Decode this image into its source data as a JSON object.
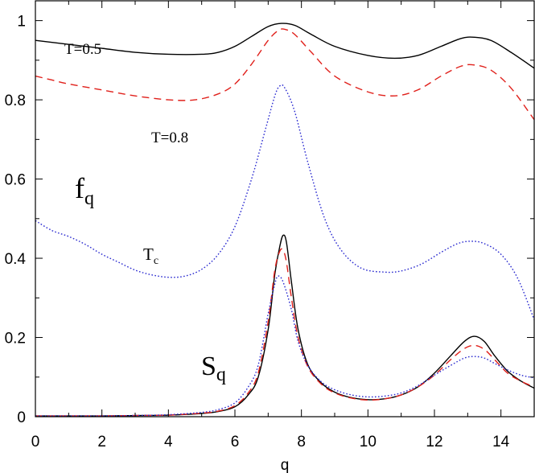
{
  "chart_data": {
    "type": "line",
    "xlabel": "q",
    "ylabel": "",
    "xlim": [
      0,
      15
    ],
    "ylim": [
      0,
      1.05
    ],
    "grid": false,
    "xticks": [
      "0",
      "2",
      "4",
      "6",
      "8",
      "10",
      "12",
      "14"
    ],
    "yticks": [
      "0",
      "0.2",
      "0.4",
      "0.6",
      "0.8",
      "1"
    ],
    "annotations": {
      "t05": "T=0.5",
      "t08": "T=0.8",
      "tc_main": "T",
      "tc_sub": "c",
      "fq_main": "f",
      "fq_sub": "q",
      "sq_main": "S",
      "sq_sub": "q"
    },
    "series": [
      {
        "id": "fq_T05",
        "style": "solid",
        "color": "#000000",
        "points": [
          [
            0,
            0.95
          ],
          [
            1,
            0.94
          ],
          [
            2,
            0.93
          ],
          [
            3,
            0.92
          ],
          [
            4,
            0.915
          ],
          [
            5,
            0.915
          ],
          [
            5.5,
            0.92
          ],
          [
            6,
            0.935
          ],
          [
            6.5,
            0.96
          ],
          [
            7,
            0.985
          ],
          [
            7.4,
            0.993
          ],
          [
            7.8,
            0.988
          ],
          [
            8.3,
            0.965
          ],
          [
            9,
            0.935
          ],
          [
            10,
            0.912
          ],
          [
            10.8,
            0.905
          ],
          [
            11.5,
            0.912
          ],
          [
            12.2,
            0.935
          ],
          [
            12.8,
            0.955
          ],
          [
            13.2,
            0.958
          ],
          [
            13.7,
            0.95
          ],
          [
            14.3,
            0.92
          ],
          [
            15,
            0.88
          ]
        ]
      },
      {
        "id": "fq_T08",
        "style": "dashed",
        "color": "#e0201b",
        "points": [
          [
            0,
            0.86
          ],
          [
            0.5,
            0.85
          ],
          [
            1,
            0.84
          ],
          [
            2,
            0.825
          ],
          [
            3,
            0.81
          ],
          [
            4,
            0.8
          ],
          [
            4.8,
            0.8
          ],
          [
            5.5,
            0.815
          ],
          [
            6,
            0.84
          ],
          [
            6.5,
            0.89
          ],
          [
            7,
            0.95
          ],
          [
            7.3,
            0.975
          ],
          [
            7.5,
            0.978
          ],
          [
            7.8,
            0.965
          ],
          [
            8.3,
            0.92
          ],
          [
            9,
            0.86
          ],
          [
            10,
            0.82
          ],
          [
            10.8,
            0.81
          ],
          [
            11.5,
            0.825
          ],
          [
            12.2,
            0.86
          ],
          [
            12.8,
            0.885
          ],
          [
            13.2,
            0.888
          ],
          [
            13.7,
            0.875
          ],
          [
            14.3,
            0.83
          ],
          [
            15,
            0.75
          ]
        ]
      },
      {
        "id": "fq_Tc",
        "style": "dotted",
        "color": "#2a2ad0",
        "points": [
          [
            0,
            0.495
          ],
          [
            0.5,
            0.47
          ],
          [
            1,
            0.455
          ],
          [
            1.5,
            0.435
          ],
          [
            2,
            0.41
          ],
          [
            2.5,
            0.39
          ],
          [
            3,
            0.37
          ],
          [
            3.5,
            0.358
          ],
          [
            4,
            0.352
          ],
          [
            4.5,
            0.355
          ],
          [
            5,
            0.372
          ],
          [
            5.5,
            0.41
          ],
          [
            6,
            0.48
          ],
          [
            6.5,
            0.6
          ],
          [
            6.9,
            0.72
          ],
          [
            7.2,
            0.81
          ],
          [
            7.35,
            0.835
          ],
          [
            7.5,
            0.83
          ],
          [
            7.8,
            0.77
          ],
          [
            8.2,
            0.64
          ],
          [
            8.7,
            0.5
          ],
          [
            9.2,
            0.42
          ],
          [
            9.8,
            0.375
          ],
          [
            10.5,
            0.365
          ],
          [
            11,
            0.368
          ],
          [
            11.6,
            0.385
          ],
          [
            12.2,
            0.415
          ],
          [
            12.7,
            0.437
          ],
          [
            13.1,
            0.443
          ],
          [
            13.5,
            0.437
          ],
          [
            14,
            0.41
          ],
          [
            14.5,
            0.35
          ],
          [
            15,
            0.245
          ]
        ]
      },
      {
        "id": "Sq_T05",
        "style": "solid",
        "color": "#000000",
        "points": [
          [
            0,
            0.002
          ],
          [
            2,
            0.002
          ],
          [
            3,
            0.003
          ],
          [
            4,
            0.004
          ],
          [
            5,
            0.008
          ],
          [
            5.5,
            0.013
          ],
          [
            6,
            0.025
          ],
          [
            6.4,
            0.055
          ],
          [
            6.7,
            0.1
          ],
          [
            7,
            0.22
          ],
          [
            7.2,
            0.36
          ],
          [
            7.35,
            0.43
          ],
          [
            7.45,
            0.458
          ],
          [
            7.55,
            0.44
          ],
          [
            7.7,
            0.34
          ],
          [
            7.9,
            0.22
          ],
          [
            8.2,
            0.13
          ],
          [
            8.6,
            0.085
          ],
          [
            9,
            0.062
          ],
          [
            9.5,
            0.048
          ],
          [
            10,
            0.043
          ],
          [
            10.5,
            0.045
          ],
          [
            11,
            0.055
          ],
          [
            11.5,
            0.075
          ],
          [
            12,
            0.11
          ],
          [
            12.5,
            0.155
          ],
          [
            12.9,
            0.19
          ],
          [
            13.2,
            0.203
          ],
          [
            13.5,
            0.19
          ],
          [
            13.8,
            0.155
          ],
          [
            14.2,
            0.115
          ],
          [
            14.6,
            0.09
          ],
          [
            15,
            0.072
          ]
        ]
      },
      {
        "id": "Sq_T08",
        "style": "dashed",
        "color": "#e0201b",
        "points": [
          [
            0,
            0.002
          ],
          [
            2,
            0.002
          ],
          [
            3,
            0.003
          ],
          [
            4,
            0.004
          ],
          [
            5,
            0.009
          ],
          [
            5.5,
            0.014
          ],
          [
            6,
            0.028
          ],
          [
            6.4,
            0.06
          ],
          [
            6.7,
            0.11
          ],
          [
            7,
            0.24
          ],
          [
            7.2,
            0.37
          ],
          [
            7.35,
            0.418
          ],
          [
            7.45,
            0.42
          ],
          [
            7.55,
            0.39
          ],
          [
            7.7,
            0.3
          ],
          [
            7.9,
            0.2
          ],
          [
            8.2,
            0.125
          ],
          [
            8.6,
            0.082
          ],
          [
            9,
            0.06
          ],
          [
            9.5,
            0.047
          ],
          [
            10,
            0.042
          ],
          [
            10.5,
            0.045
          ],
          [
            11,
            0.055
          ],
          [
            11.5,
            0.075
          ],
          [
            12,
            0.105
          ],
          [
            12.5,
            0.145
          ],
          [
            12.9,
            0.172
          ],
          [
            13.2,
            0.18
          ],
          [
            13.5,
            0.17
          ],
          [
            13.8,
            0.145
          ],
          [
            14.2,
            0.11
          ],
          [
            14.6,
            0.09
          ],
          [
            15,
            0.075
          ]
        ]
      },
      {
        "id": "Sq_Tc",
        "style": "dotted",
        "color": "#2a2ad0",
        "points": [
          [
            0,
            0.002
          ],
          [
            2,
            0.002
          ],
          [
            3,
            0.003
          ],
          [
            4,
            0.005
          ],
          [
            5,
            0.011
          ],
          [
            5.5,
            0.018
          ],
          [
            6,
            0.035
          ],
          [
            6.4,
            0.075
          ],
          [
            6.7,
            0.13
          ],
          [
            7,
            0.26
          ],
          [
            7.2,
            0.335
          ],
          [
            7.3,
            0.355
          ],
          [
            7.45,
            0.34
          ],
          [
            7.7,
            0.27
          ],
          [
            7.9,
            0.19
          ],
          [
            8.2,
            0.128
          ],
          [
            8.6,
            0.088
          ],
          [
            9,
            0.068
          ],
          [
            9.5,
            0.055
          ],
          [
            10,
            0.05
          ],
          [
            10.5,
            0.052
          ],
          [
            11,
            0.06
          ],
          [
            11.5,
            0.078
          ],
          [
            12,
            0.105
          ],
          [
            12.5,
            0.13
          ],
          [
            12.9,
            0.148
          ],
          [
            13.2,
            0.152
          ],
          [
            13.5,
            0.148
          ],
          [
            13.8,
            0.135
          ],
          [
            14.2,
            0.118
          ],
          [
            14.6,
            0.105
          ],
          [
            15,
            0.098
          ]
        ]
      }
    ]
  }
}
